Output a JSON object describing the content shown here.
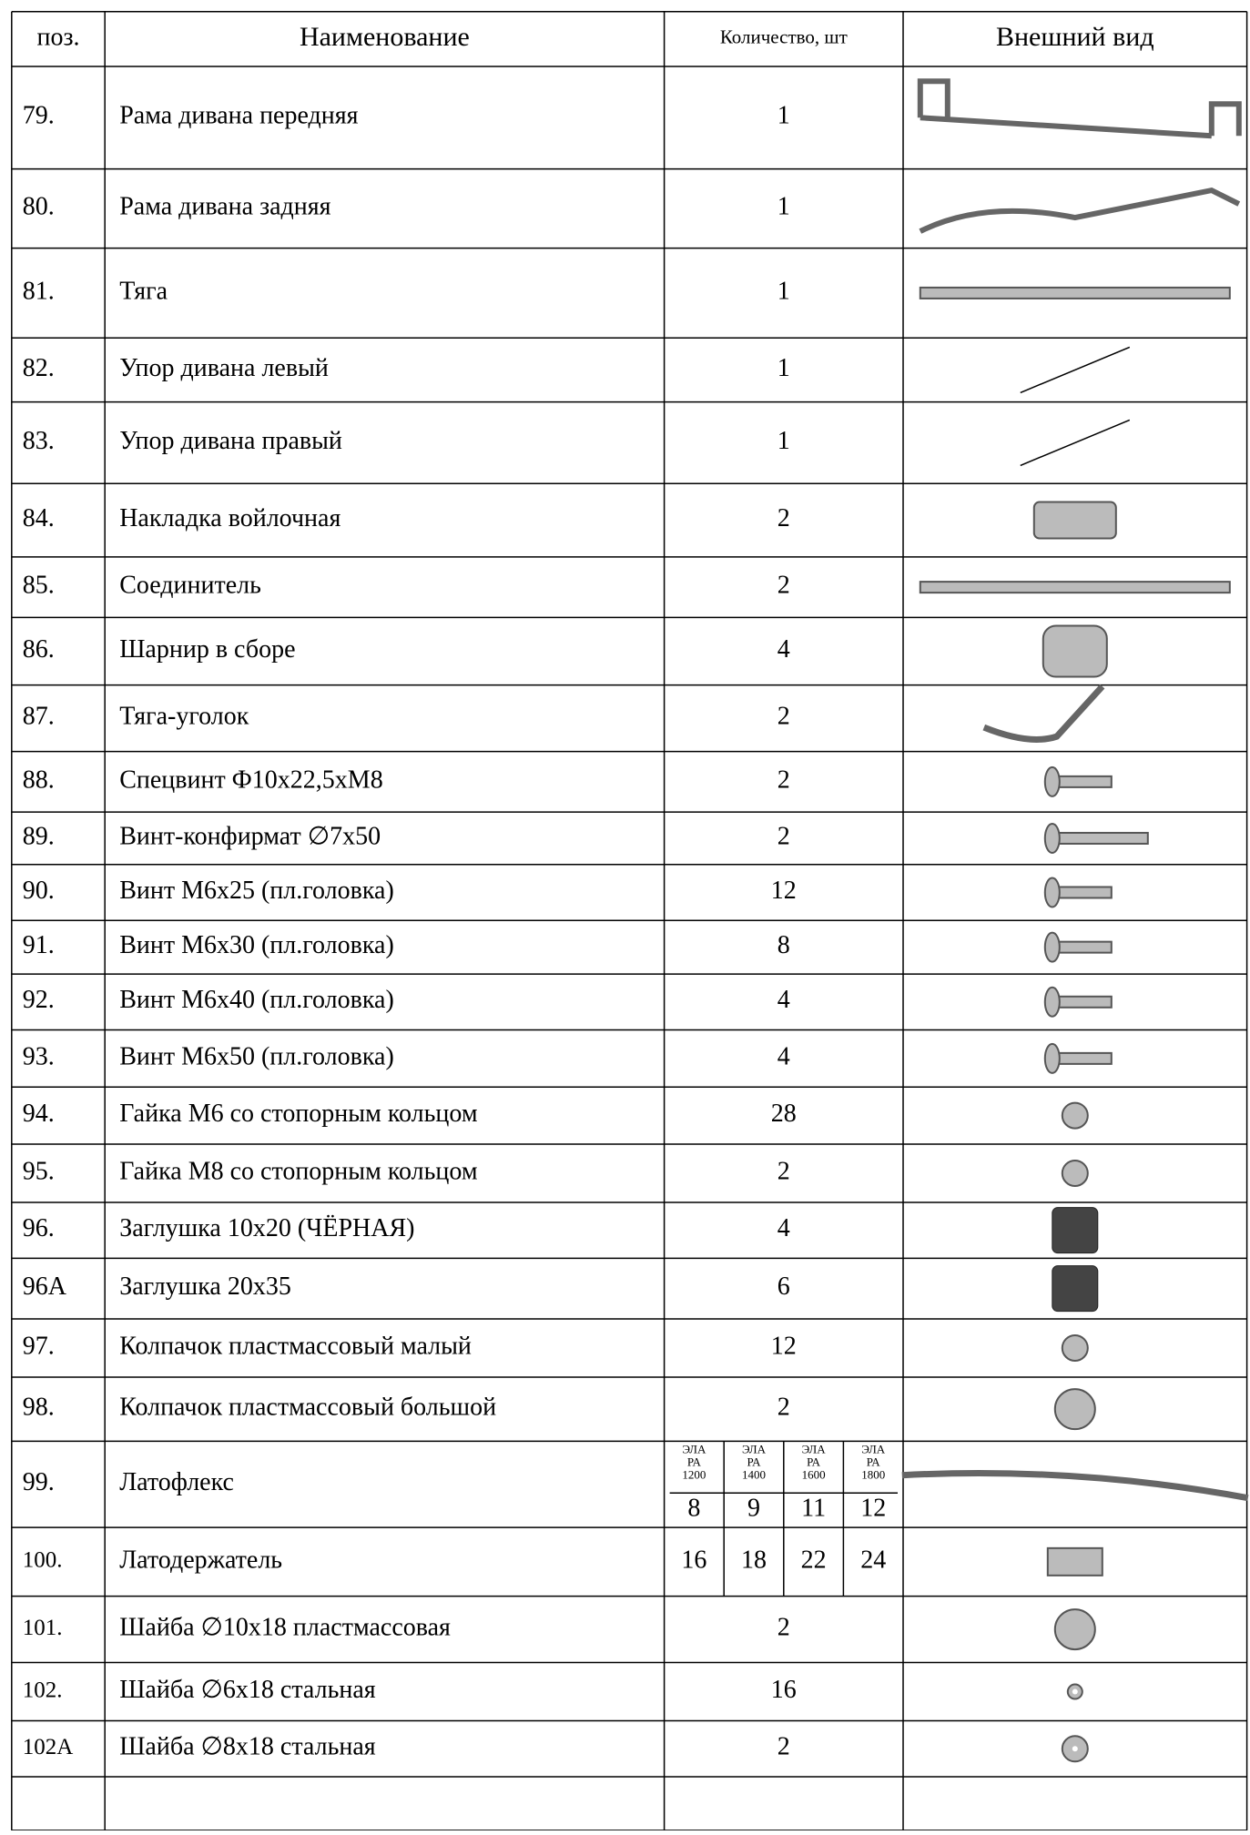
{
  "table": {
    "header": [
      "поз.",
      "Наименование",
      "Количество, шт",
      "Внешний вид"
    ],
    "rows": [
      {
        "pos": "79.",
        "name": "Рама дивана передняя",
        "quantity": 1
      },
      {
        "pos": "80.",
        "name": "Рама дивана задняя",
        "quantity": 1
      },
      {
        "pos": "81.",
        "name": "Тяга",
        "quantity": 1
      },
      {
        "pos": "82.",
        "name": "Упор дивана левый",
        "quantity": 1
      },
      {
        "pos": "83.",
        "name": "Упор дивана правый",
        "quantity": 1
      },
      {
        "pos": "84.",
        "name": "Накладка войлочная",
        "quantity": 2
      },
      {
        "pos": "85.",
        "name": "Соединитель",
        "quantity": 2
      },
      {
        "pos": "86.",
        "name": "Шарнир в сборе",
        "quantity": 4
      },
      {
        "pos": "87.",
        "name": "Тяга-уголок",
        "quantity": 2
      },
      {
        "pos": "88.",
        "name": "Спецвинт Ф10х22,5хМ8",
        "quantity": 2
      },
      {
        "pos": "89.",
        "name": "Винт-конфирмат ∅7х50",
        "quantity": 2
      },
      {
        "pos": "90.",
        "name": "Винт М6х25 (пл.головка)",
        "quantity": 12
      },
      {
        "pos": "91.",
        "name": "Винт М6х30 (пл.головка)",
        "quantity": 8
      },
      {
        "pos": "92.",
        "name": "Винт М6х40 (пл.головка)",
        "quantity": 4
      },
      {
        "pos": "93.",
        "name": "Винт М6х50 (пл.головка)",
        "quantity": 4
      },
      {
        "pos": "94.",
        "name": "Гайка М6 со стопорным кольцом",
        "quantity": 28
      },
      {
        "pos": "95.",
        "name": "Гайка М8 со стопорным кольцом",
        "quantity": 2
      },
      {
        "pos": "96.",
        "name": "Заглушка 10х20 (ЧЁРНАЯ)",
        "quantity": 4
      },
      {
        "pos": "96А",
        "name": "Заглушка 20х35",
        "quantity": 6
      },
      {
        "pos": "97.",
        "name": "Колпачок пластмассовый малый",
        "quantity": 12
      },
      {
        "pos": "98.",
        "name": "Колпачок пластмассовый большой",
        "quantity": 2
      },
      {
        "pos": "99.",
        "name": "Латофлекс",
        "variants": [
          {
            "label": [
              "ЭЛА",
              "РА",
              "1200"
            ],
            "quantity": 8
          },
          {
            "label": [
              "ЭЛА",
              "РА",
              "1400"
            ],
            "quantity": 9
          },
          {
            "label": [
              "ЭЛА",
              "РА",
              "1600"
            ],
            "quantity": 11
          },
          {
            "label": [
              "ЭЛА",
              "РА",
              "1800"
            ],
            "quantity": 12
          }
        ]
      },
      {
        "pos": "100.",
        "name": "Латодержатель",
        "quantities": [
          16,
          18,
          22,
          24
        ]
      },
      {
        "pos": "101.",
        "name": "Шайба ∅10х18 пластмассовая",
        "quantity": 2
      },
      {
        "pos": "102.",
        "name": "Шайба ∅6х18 стальная",
        "quantity": 16
      },
      {
        "pos": "102А",
        "name": "Шайба ∅8х18 стальная",
        "quantity": 2
      }
    ]
  }
}
